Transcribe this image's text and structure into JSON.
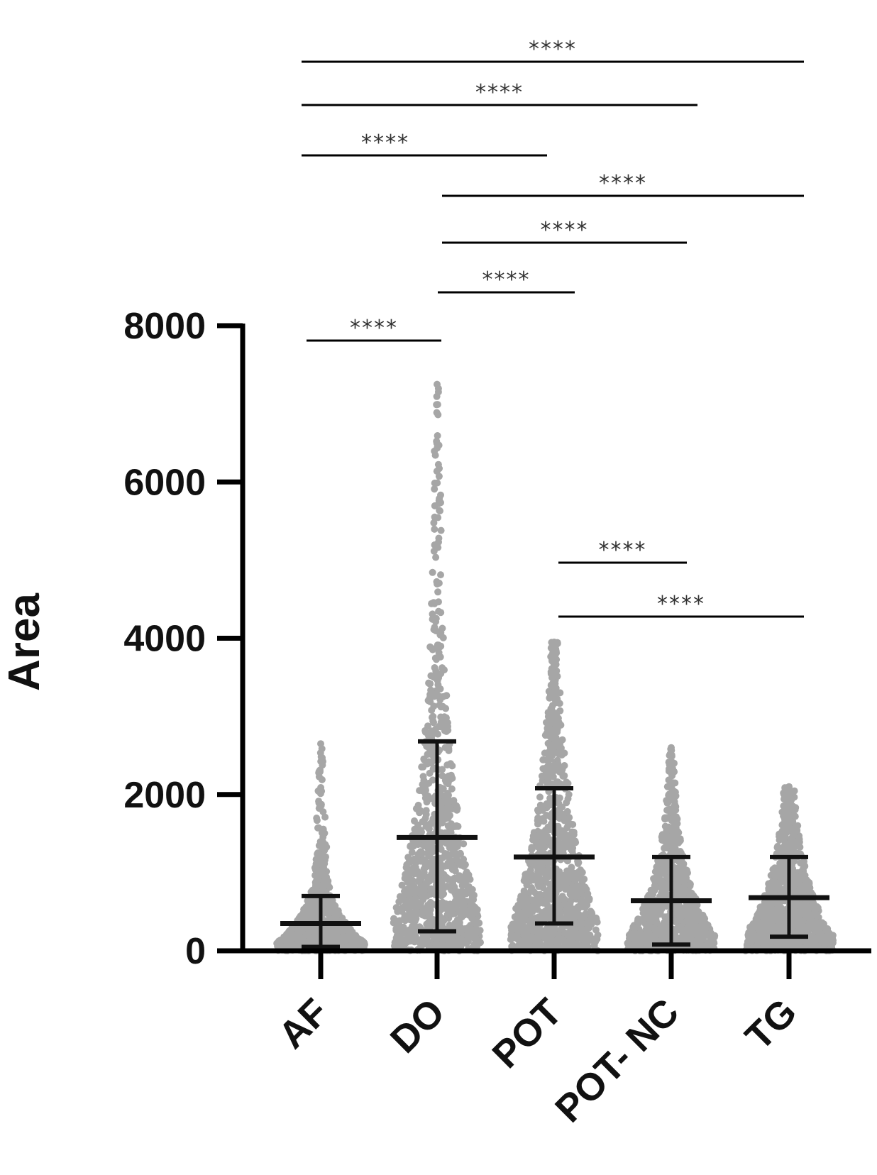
{
  "chart_data": {
    "type": "scatter",
    "subtype": "dot-plot-with-mean-sd",
    "title": "",
    "xlabel": "",
    "ylabel": "Area",
    "ylim": [
      0,
      8000
    ],
    "yticks": [
      "0",
      "2000",
      "4000",
      "6000",
      "8000"
    ],
    "categories": [
      "AF",
      "DO",
      "POT",
      "POT- NC",
      "TG"
    ],
    "groups": [
      {
        "name": "AF",
        "mean": 350,
        "sd_low": 50,
        "sd_high": 700,
        "max": 2650
      },
      {
        "name": "DO",
        "mean": 1450,
        "sd_low": 250,
        "sd_high": 2680,
        "max": 7250
      },
      {
        "name": "POT",
        "mean": 1200,
        "sd_low": 350,
        "sd_high": 2080,
        "max": 3950
      },
      {
        "name": "POT- NC",
        "mean": 640,
        "sd_low": 80,
        "sd_high": 1200,
        "max": 2600
      },
      {
        "name": "TG",
        "mean": 680,
        "sd_low": 180,
        "sd_high": 1200,
        "max": 2100
      }
    ],
    "comparisons": [
      {
        "from": "AF",
        "to": "TG",
        "label": "****"
      },
      {
        "from": "AF",
        "to": "POT- NC",
        "label": "****"
      },
      {
        "from": "AF",
        "to": "POT",
        "label": "****"
      },
      {
        "from": "DO",
        "to": "TG",
        "label": "****"
      },
      {
        "from": "DO",
        "to": "POT- NC",
        "label": "****"
      },
      {
        "from": "DO",
        "to": "POT",
        "label": "****"
      },
      {
        "from": "AF",
        "to": "DO",
        "label": "****"
      },
      {
        "from": "POT",
        "to": "POT- NC",
        "label": "****"
      },
      {
        "from": "POT",
        "to": "TG",
        "label": "****"
      }
    ],
    "colors": {
      "points": "#a6a6a6",
      "bars": "#111111",
      "axis": "#000000"
    },
    "grid": false,
    "legend": "none"
  }
}
